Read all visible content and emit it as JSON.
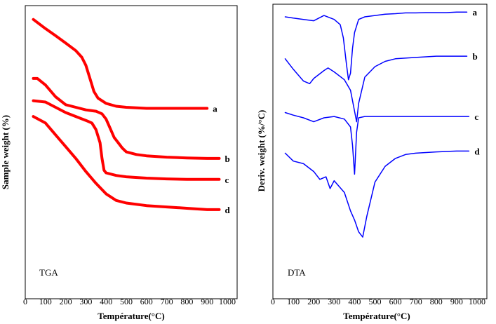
{
  "chart_data": [
    {
      "type": "line",
      "title": "TGA",
      "xlabel": "Température(°C)",
      "ylabel": "Sample weight (%)",
      "xlim": [
        0,
        1000
      ],
      "xticks": [
        "0",
        "100",
        "200",
        "300",
        "400",
        "500",
        "600",
        "700",
        "800",
        "900",
        "1000"
      ],
      "grid": false,
      "line_color": "#ff0000",
      "series": [
        {
          "name": "a",
          "x": [
            40,
            100,
            150,
            200,
            250,
            280,
            300,
            320,
            340,
            360,
            400,
            450,
            500,
            600,
            700,
            800,
            900
          ],
          "y": [
            95.0,
            91.5,
            88.8,
            86.0,
            83.1,
            80.6,
            77.5,
            72.5,
            67.5,
            65.0,
            63.0,
            61.9,
            61.5,
            61.1,
            61.1,
            61.1,
            61.1
          ]
        },
        {
          "name": "b",
          "x": [
            40,
            60,
            100,
            150,
            200,
            250,
            300,
            350,
            380,
            400,
            420,
            440,
            460,
            480,
            500,
            550,
            600,
            700,
            800,
            900,
            960
          ],
          "y": [
            72.5,
            72.5,
            70.0,
            65.5,
            62.5,
            61.5,
            60.5,
            60.0,
            59.0,
            57.0,
            53.5,
            50.0,
            48.0,
            46.0,
            44.5,
            43.5,
            43.0,
            42.5,
            42.2,
            42.0,
            42.0
          ]
        },
        {
          "name": "c",
          "x": [
            40,
            100,
            150,
            200,
            250,
            300,
            330,
            350,
            370,
            380,
            390,
            400,
            450,
            500,
            600,
            700,
            800,
            900,
            960
          ],
          "y": [
            64.0,
            63.5,
            61.5,
            59.5,
            58.0,
            56.5,
            55.5,
            53.0,
            48.0,
            42.0,
            37.5,
            36.5,
            35.5,
            35.0,
            34.5,
            34.2,
            34.0,
            34.0,
            34.0
          ]
        },
        {
          "name": "d",
          "x": [
            40,
            100,
            150,
            200,
            250,
            300,
            350,
            400,
            450,
            500,
            600,
            700,
            800,
            900,
            960
          ],
          "y": [
            58.0,
            55.5,
            51.0,
            46.5,
            42.0,
            37.0,
            32.5,
            28.5,
            26.0,
            25.0,
            24.0,
            23.5,
            23.0,
            22.5,
            22.5
          ]
        }
      ]
    },
    {
      "type": "line",
      "title": "DTA",
      "xlabel": "Température(°C)",
      "ylabel": "Deriv. weight (%/°C)",
      "xlim": [
        0,
        1000
      ],
      "xticks": [
        "0",
        "100",
        "200",
        "300",
        "400",
        "500",
        "600",
        "700",
        "800",
        "900",
        "1000"
      ],
      "grid": false,
      "line_color": "#0000ff",
      "series": [
        {
          "name": "a",
          "x": [
            60,
            100,
            150,
            200,
            250,
            300,
            330,
            345,
            360,
            370,
            380,
            390,
            400,
            420,
            450,
            500,
            550,
            600,
            650,
            700,
            750,
            800,
            850,
            900,
            950
          ],
          "y": [
            96.0,
            95.5,
            95.0,
            94.5,
            96.5,
            95.0,
            93.0,
            88.0,
            78.0,
            72.0,
            74.5,
            84.0,
            90.0,
            95.0,
            96.0,
            96.5,
            97.0,
            97.2,
            97.5,
            97.5,
            97.6,
            97.6,
            97.6,
            97.8,
            97.8
          ]
        },
        {
          "name": "b",
          "x": [
            60,
            100,
            150,
            180,
            200,
            250,
            270,
            300,
            350,
            380,
            400,
            410,
            420,
            450,
            500,
            550,
            600,
            700,
            800,
            900,
            950
          ],
          "y": [
            80.0,
            76.0,
            71.5,
            70.5,
            72.5,
            75.5,
            76.5,
            75.0,
            72.0,
            68.0,
            60.0,
            56.0,
            63.0,
            73.0,
            77.0,
            79.0,
            80.0,
            80.5,
            81.0,
            81.0,
            81.0
          ]
        },
        {
          "name": "c",
          "x": [
            60,
            100,
            150,
            200,
            250,
            300,
            350,
            380,
            390,
            400,
            410,
            420,
            450,
            500,
            600,
            700,
            800,
            900,
            960
          ],
          "y": [
            59.5,
            58.5,
            57.5,
            56.0,
            57.5,
            58.0,
            57.0,
            54.0,
            47.0,
            36.0,
            52.0,
            57.5,
            58.0,
            58.0,
            58.0,
            58.0,
            58.0,
            58.0,
            58.0
          ]
        },
        {
          "name": "d",
          "x": [
            60,
            100,
            150,
            200,
            230,
            260,
            280,
            300,
            350,
            380,
            400,
            420,
            440,
            460,
            500,
            550,
            600,
            650,
            700,
            800,
            900,
            960
          ],
          "y": [
            44.0,
            41.0,
            40.0,
            37.0,
            34.0,
            35.0,
            30.5,
            33.5,
            29.0,
            22.0,
            18.5,
            14.0,
            12.0,
            20.0,
            33.0,
            39.0,
            42.0,
            43.5,
            44.0,
            44.5,
            44.8,
            44.8
          ]
        }
      ]
    }
  ]
}
